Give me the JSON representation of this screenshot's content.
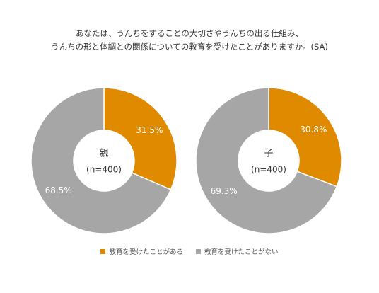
{
  "title_lines": [
    "あなたは、うんちをすることの大切さやうんちの出る仕組み、",
    "うんちの形と体調との関係についての教育を受けたことがありますか。(SA)"
  ],
  "colors": {
    "yes": "#E08A00",
    "no": "#A6A6A6"
  },
  "legend": {
    "yes_label": "教育を受けたことがある",
    "no_label": "教育を受けたことがない"
  },
  "chart_data": [
    {
      "type": "pie",
      "center_label": "親",
      "center_sublabel": "(n=400)",
      "slices": [
        {
          "label": "教育を受けたことがある",
          "value": 31.5,
          "display": "31.5%"
        },
        {
          "label": "教育を受けたことがない",
          "value": 68.5,
          "display": "68.5%"
        }
      ]
    },
    {
      "type": "pie",
      "center_label": "子",
      "center_sublabel": "(n=400)",
      "slices": [
        {
          "label": "教育を受けたことがある",
          "value": 30.8,
          "display": "30.8%"
        },
        {
          "label": "教育を受けたことがない",
          "value": 69.3,
          "display": "69.3%"
        }
      ]
    }
  ]
}
